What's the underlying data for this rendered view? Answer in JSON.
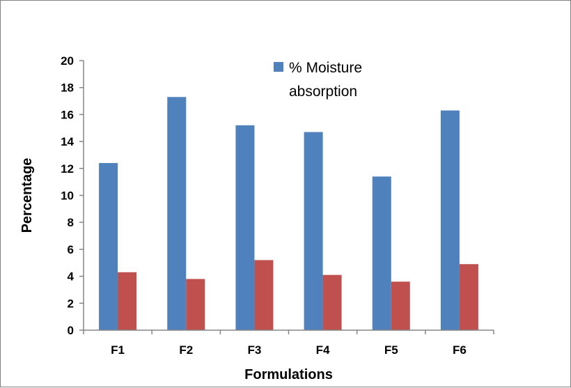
{
  "chart_data": {
    "type": "bar",
    "categories": [
      "F1",
      "F2",
      "F3",
      "F4",
      "F5",
      "F6"
    ],
    "series": [
      {
        "name": "% Moisture absorption",
        "color": "#4F81BD",
        "values": [
          12.4,
          17.3,
          15.2,
          14.7,
          11.4,
          16.3
        ]
      },
      {
        "name": "",
        "color": "#C0504D",
        "values": [
          4.3,
          3.8,
          5.2,
          4.1,
          3.6,
          4.9
        ]
      }
    ],
    "title": "",
    "xlabel": "Formulations",
    "ylabel": "Percentage",
    "ylim": [
      0,
      20
    ],
    "yticks": [
      0,
      2,
      4,
      6,
      8,
      10,
      12,
      14,
      16,
      18,
      20
    ],
    "grid": false,
    "legend": {
      "position": "top-right",
      "lines": [
        "% Moisture",
        "absorption"
      ]
    }
  }
}
